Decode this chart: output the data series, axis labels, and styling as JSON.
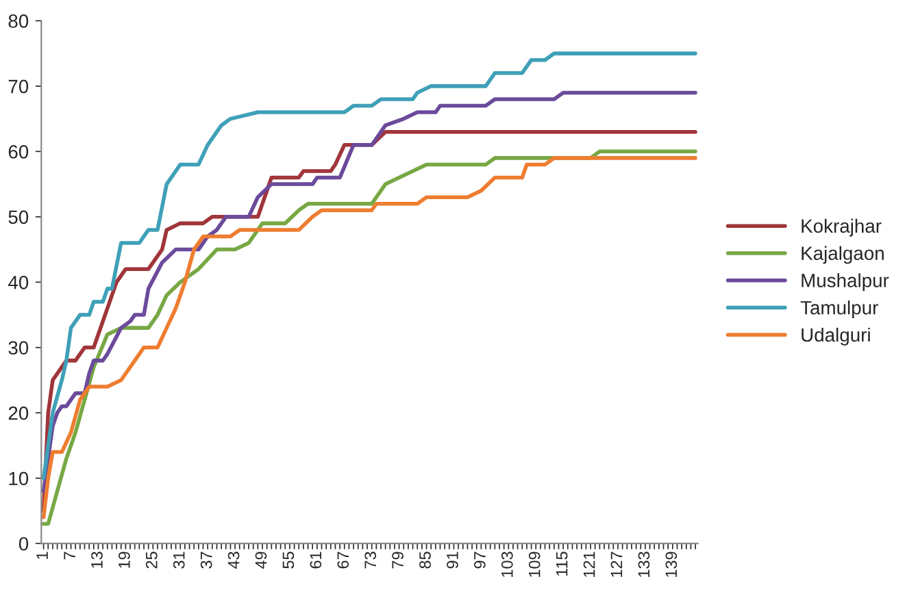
{
  "chart_data": {
    "type": "line",
    "xlim": [
      0.5,
      144.5
    ],
    "ylim": [
      0,
      80
    ],
    "yticks": [
      0,
      10,
      20,
      30,
      40,
      50,
      60,
      70,
      80
    ],
    "xticks": [
      1,
      {
        "value": 2,
        "label": null
      },
      {
        "value": 3,
        "label": null
      },
      {
        "value": 4,
        "label": null
      },
      {
        "value": 5,
        "label": null
      },
      {
        "value": 6,
        "label": null
      },
      7,
      {
        "value": 8,
        "label": null
      },
      {
        "value": 9,
        "label": null
      },
      {
        "value": 10,
        "label": null
      },
      {
        "value": 11,
        "label": null
      },
      {
        "value": 12,
        "label": null
      },
      13,
      {
        "value": 14,
        "label": null
      },
      {
        "value": 15,
        "label": null
      },
      {
        "value": 16,
        "label": null
      },
      {
        "value": 17,
        "label": null
      },
      {
        "value": 18,
        "label": null
      },
      19,
      {
        "value": 20,
        "label": null
      },
      {
        "value": 21,
        "label": null
      },
      {
        "value": 22,
        "label": null
      },
      {
        "value": 23,
        "label": null
      },
      {
        "value": 24,
        "label": null
      },
      25,
      {
        "value": 26,
        "label": null
      },
      {
        "value": 27,
        "label": null
      },
      {
        "value": 28,
        "label": null
      },
      {
        "value": 29,
        "label": null
      },
      {
        "value": 30,
        "label": null
      },
      31,
      {
        "value": 32,
        "label": null
      },
      {
        "value": 33,
        "label": null
      },
      {
        "value": 34,
        "label": null
      },
      {
        "value": 35,
        "label": null
      },
      {
        "value": 36,
        "label": null
      },
      37,
      {
        "value": 38,
        "label": null
      },
      {
        "value": 39,
        "label": null
      },
      {
        "value": 40,
        "label": null
      },
      {
        "value": 41,
        "label": null
      },
      {
        "value": 42,
        "label": null
      },
      43,
      {
        "value": 44,
        "label": null
      },
      {
        "value": 45,
        "label": null
      },
      {
        "value": 46,
        "label": null
      },
      {
        "value": 47,
        "label": null
      },
      {
        "value": 48,
        "label": null
      },
      49,
      {
        "value": 50,
        "label": null
      },
      {
        "value": 51,
        "label": null
      },
      {
        "value": 52,
        "label": null
      },
      {
        "value": 53,
        "label": null
      },
      {
        "value": 54,
        "label": null
      },
      55,
      {
        "value": 56,
        "label": null
      },
      {
        "value": 57,
        "label": null
      },
      {
        "value": 58,
        "label": null
      },
      {
        "value": 59,
        "label": null
      },
      {
        "value": 60,
        "label": null
      },
      61,
      {
        "value": 62,
        "label": null
      },
      {
        "value": 63,
        "label": null
      },
      {
        "value": 64,
        "label": null
      },
      {
        "value": 65,
        "label": null
      },
      {
        "value": 66,
        "label": null
      },
      67,
      {
        "value": 68,
        "label": null
      },
      {
        "value": 69,
        "label": null
      },
      {
        "value": 70,
        "label": null
      },
      {
        "value": 71,
        "label": null
      },
      {
        "value": 72,
        "label": null
      },
      73,
      {
        "value": 74,
        "label": null
      },
      {
        "value": 75,
        "label": null
      },
      {
        "value": 76,
        "label": null
      },
      {
        "value": 77,
        "label": null
      },
      {
        "value": 78,
        "label": null
      },
      79,
      {
        "value": 80,
        "label": null
      },
      {
        "value": 81,
        "label": null
      },
      {
        "value": 82,
        "label": null
      },
      {
        "value": 83,
        "label": null
      },
      {
        "value": 84,
        "label": null
      },
      85,
      {
        "value": 86,
        "label": null
      },
      {
        "value": 87,
        "label": null
      },
      {
        "value": 88,
        "label": null
      },
      {
        "value": 89,
        "label": null
      },
      {
        "value": 90,
        "label": null
      },
      91,
      {
        "value": 92,
        "label": null
      },
      {
        "value": 93,
        "label": null
      },
      {
        "value": 94,
        "label": null
      },
      {
        "value": 95,
        "label": null
      },
      {
        "value": 96,
        "label": null
      },
      97,
      {
        "value": 98,
        "label": null
      },
      {
        "value": 99,
        "label": null
      },
      {
        "value": 100,
        "label": null
      },
      {
        "value": 101,
        "label": null
      },
      {
        "value": 102,
        "label": null
      },
      103,
      {
        "value": 104,
        "label": null
      },
      {
        "value": 105,
        "label": null
      },
      {
        "value": 106,
        "label": null
      },
      {
        "value": 107,
        "label": null
      },
      {
        "value": 108,
        "label": null
      },
      109,
      {
        "value": 110,
        "label": null
      },
      {
        "value": 111,
        "label": null
      },
      {
        "value": 112,
        "label": null
      },
      {
        "value": 113,
        "label": null
      },
      {
        "value": 114,
        "label": null
      },
      115,
      {
        "value": 116,
        "label": null
      },
      {
        "value": 117,
        "label": null
      },
      {
        "value": 118,
        "label": null
      },
      {
        "value": 119,
        "label": null
      },
      {
        "value": 120,
        "label": null
      },
      121,
      {
        "value": 122,
        "label": null
      },
      {
        "value": 123,
        "label": null
      },
      {
        "value": 124,
        "label": null
      },
      {
        "value": 125,
        "label": null
      },
      {
        "value": 126,
        "label": null
      },
      127,
      {
        "value": 128,
        "label": null
      },
      {
        "value": 129,
        "label": null
      },
      {
        "value": 130,
        "label": null
      },
      {
        "value": 131,
        "label": null
      },
      {
        "value": 132,
        "label": null
      },
      133,
      {
        "value": 134,
        "label": null
      },
      {
        "value": 135,
        "label": null
      },
      {
        "value": 136,
        "label": null
      },
      {
        "value": 137,
        "label": null
      },
      {
        "value": 138,
        "label": null
      },
      139,
      {
        "value": 140,
        "label": null
      },
      {
        "value": 141,
        "label": null
      },
      {
        "value": 142,
        "label": null
      },
      {
        "value": 143,
        "label": null
      },
      {
        "value": 144,
        "label": null
      }
    ],
    "grid": false,
    "legend": "right",
    "marker": "none",
    "line_style": "solid",
    "series": [
      {
        "name": "Kokrajhar",
        "color": "#a0353a",
        "x": [
          1,
          2,
          3,
          5,
          6,
          8,
          10,
          12,
          14,
          17,
          19,
          24,
          27,
          28,
          31,
          36,
          38,
          48,
          51,
          57,
          58,
          64,
          65,
          67,
          73,
          76,
          144
        ],
        "values": [
          5,
          20,
          25,
          27,
          28,
          28,
          30,
          30,
          34,
          40,
          42,
          42,
          45,
          48,
          49,
          49,
          50,
          50,
          56,
          56,
          57,
          57,
          58,
          61,
          61,
          63,
          63
        ]
      },
      {
        "name": "Kajalgaon",
        "color": "#77a844",
        "x": [
          1,
          2,
          4,
          6,
          8,
          10,
          12,
          15,
          18,
          24,
          26,
          28,
          31,
          35,
          39,
          43,
          46,
          49,
          54,
          57,
          59,
          73,
          76,
          79,
          82,
          85,
          98,
          100,
          121,
          123,
          144
        ],
        "values": [
          3,
          3,
          8,
          13,
          17,
          22,
          27,
          32,
          33,
          33,
          35,
          38,
          40,
          42,
          45,
          45,
          46,
          49,
          49,
          51,
          52,
          52,
          55,
          56,
          57,
          58,
          58,
          59,
          59,
          60,
          60
        ]
      },
      {
        "name": "Mushalpur",
        "color": "#6b4a9b",
        "x": [
          1,
          3,
          4,
          5,
          6,
          8,
          10,
          11,
          12,
          14,
          15,
          18,
          20,
          21,
          23,
          24,
          27,
          30,
          35,
          37,
          39,
          41,
          46,
          48,
          51,
          60,
          61,
          66,
          69,
          73,
          74,
          76,
          80,
          83,
          87,
          88,
          98,
          100,
          113,
          115,
          144
        ],
        "values": [
          8,
          18,
          20,
          21,
          21,
          23,
          23,
          26,
          28,
          28,
          29,
          33,
          34,
          35,
          35,
          39,
          43,
          45,
          45,
          47,
          48,
          50,
          50,
          53,
          55,
          55,
          56,
          56,
          61,
          61,
          62,
          64,
          65,
          66,
          66,
          67,
          67,
          68,
          68,
          69,
          69
        ]
      },
      {
        "name": "Tamulpur",
        "color": "#3fa0b8",
        "x": [
          1,
          3,
          5,
          6,
          7,
          9,
          11,
          12,
          14,
          15,
          16,
          18,
          22,
          24,
          26,
          28,
          31,
          35,
          37,
          40,
          42,
          48,
          67,
          69,
          73,
          75,
          82,
          83,
          86,
          98,
          100,
          106,
          108,
          111,
          113,
          144
        ],
        "values": [
          10,
          20,
          25,
          28,
          33,
          35,
          35,
          37,
          37,
          39,
          39,
          46,
          46,
          48,
          48,
          55,
          58,
          58,
          61,
          64,
          65,
          66,
          66,
          67,
          67,
          68,
          68,
          69,
          70,
          70,
          72,
          72,
          74,
          74,
          75,
          75
        ]
      },
      {
        "name": "Udalguri",
        "color": "#ee7d30",
        "x": [
          1,
          2,
          3,
          5,
          7,
          9,
          11,
          15,
          18,
          21,
          23,
          26,
          28,
          30,
          32,
          34,
          36,
          42,
          44,
          57,
          60,
          62,
          73,
          74,
          83,
          85,
          94,
          97,
          100,
          106,
          107,
          111,
          113,
          144
        ],
        "values": [
          4,
          10,
          14,
          14,
          17,
          22,
          24,
          24,
          25,
          28,
          30,
          30,
          33,
          36,
          40,
          45,
          47,
          47,
          48,
          48,
          50,
          51,
          51,
          52,
          52,
          53,
          53,
          54,
          56,
          56,
          58,
          58,
          59,
          59
        ]
      }
    ]
  }
}
